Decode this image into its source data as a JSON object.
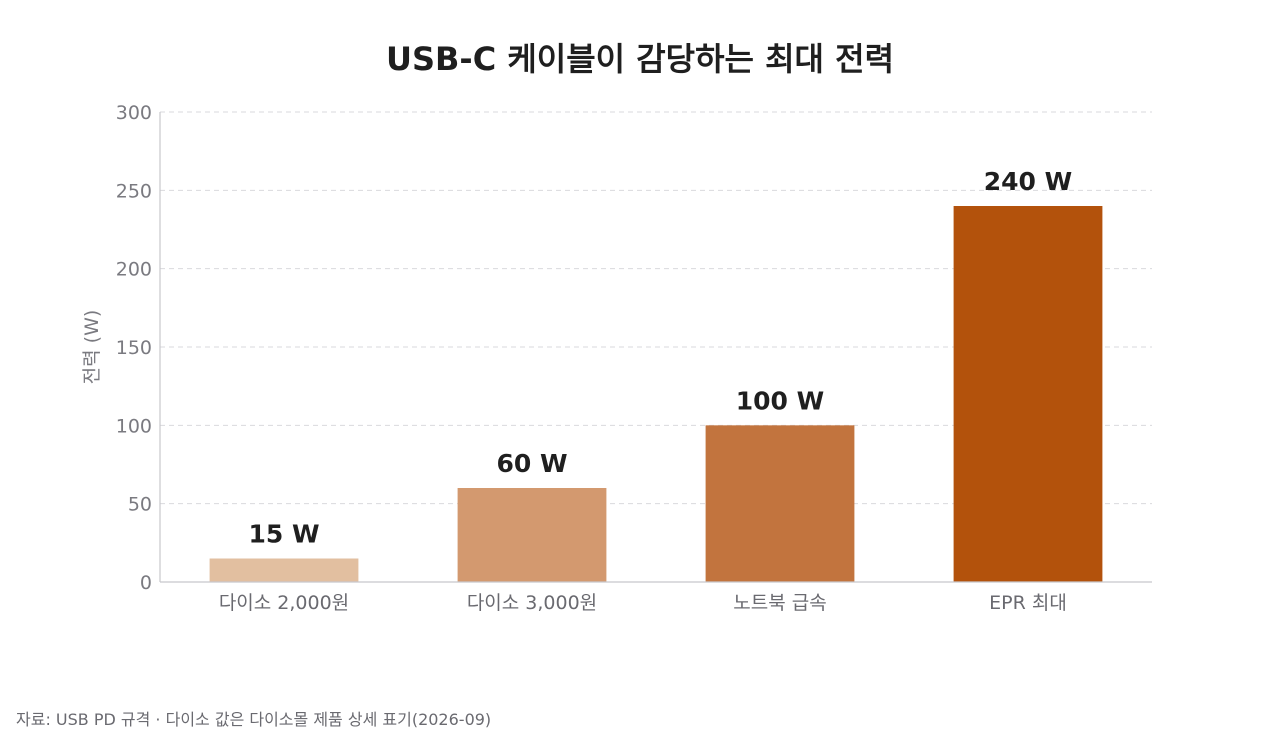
{
  "chart_data": {
    "type": "bar",
    "title": "USB-C 케이블이 감당하는 최대 전력",
    "ylabel": "전력 (W)",
    "xlabel": "",
    "ylim": [
      0,
      300
    ],
    "yticks": [
      0,
      50,
      100,
      150,
      200,
      250,
      300
    ],
    "grid": true,
    "categories": [
      "다이소 2,000원",
      "다이소 3,000원",
      "노트북 급속",
      "EPR 최대"
    ],
    "values": [
      15,
      60,
      100,
      240
    ],
    "data_labels": [
      "15 W",
      "60 W",
      "100 W",
      "240 W"
    ],
    "colors": [
      "#e2bfa0",
      "#d3996f",
      "#c2743e",
      "#b3520c"
    ]
  },
  "source": "자료: USB PD 규격 · 다이소 값은 다이소몰 제품 상세 표기(2026-09)"
}
